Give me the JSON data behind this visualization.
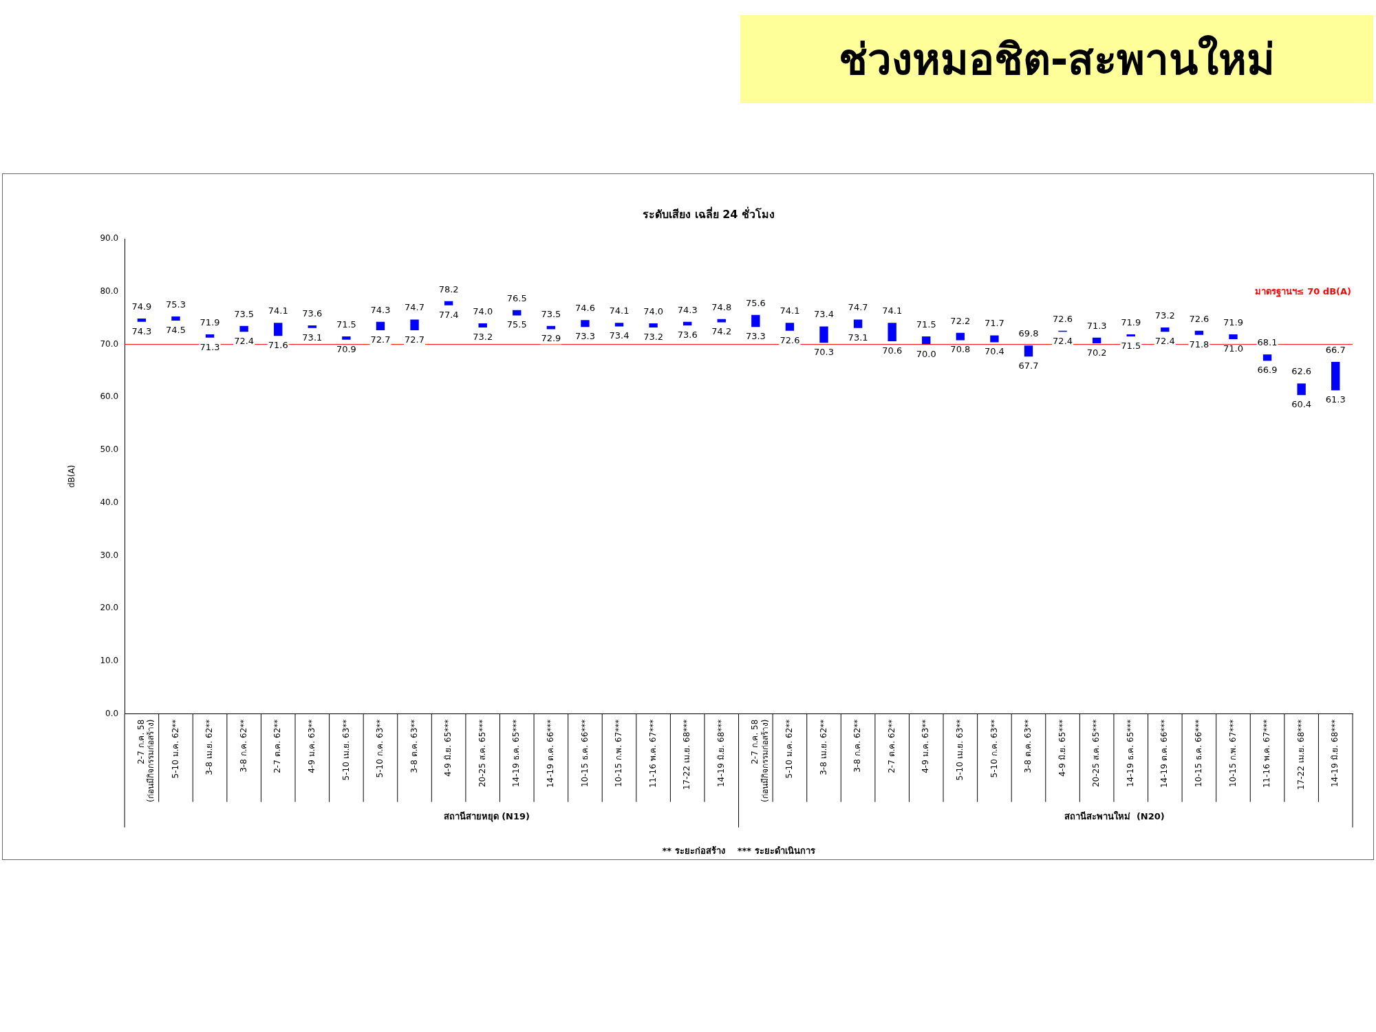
{
  "chart_data": {
    "type": "bar",
    "title": "ช่วงหมอชิต-สะพานใหม่",
    "subtitle": "ระดับเสียง เฉลี่ย 24 ชั่วโมง",
    "ylabel": "dB(A)",
    "categories": [
      "2-7 ก.ค. 58\n(ก่อนมีกิจกรรมก่อสร้าง)",
      "5-10 ม.ค. 62**",
      "3-8 เม.ย. 62**",
      "3-8 ก.ค. 62**",
      "2-7 ต.ค. 62**",
      "4-9 ม.ค. 63**",
      "5-10 เม.ย. 63**",
      "5-10 ก.ค. 63**",
      "3-8 ต.ค. 63**",
      "4-9 มิ.ย. 65***",
      "20-25 ส.ค. 65***",
      "14-19 ธ.ค. 65***",
      "14-19 ต.ค. 66***",
      "10-15 ธ.ค. 66***",
      "10-15 ก.พ. 67***",
      "11-16 พ.ค. 67***",
      "17-22 เม.ย. 68***",
      "14-19 มิ.ย. 68***",
      "2-7 ก.ค. 58\n(ก่อนมีกิจกรรมก่อสร้าง)",
      "5-10 ม.ค. 62**",
      "3-8 เม.ย. 62**",
      "3-8 ก.ค. 62**",
      "2-7 ต.ค. 62**",
      "4-9 ม.ค. 63**",
      "5-10 เม.ย. 63**",
      "5-10 ก.ค. 63**",
      "3-8 ต.ค. 63**",
      "4-9 มิ.ย. 65***",
      "20-25 ส.ค. 65***",
      "14-19 ธ.ค. 65***",
      "14-19 ต.ค. 66***",
      "10-15 ธ.ค. 66***",
      "10-15 ก.พ. 67***",
      "11-16 พ.ค. 67***",
      "17-22 เม.ย. 68***",
      "14-19 มิ.ย. 68***"
    ],
    "base": [
      74.3,
      74.5,
      71.3,
      72.4,
      71.6,
      73.1,
      70.9,
      72.7,
      72.7,
      77.4,
      73.2,
      75.5,
      72.9,
      73.3,
      73.4,
      73.2,
      73.6,
      74.2,
      73.3,
      72.6,
      70.3,
      73.1,
      70.6,
      70.0,
      70.8,
      70.4,
      67.7,
      72.4,
      70.2,
      71.5,
      72.4,
      71.8,
      71.0,
      66.9,
      60.4,
      61.3
    ],
    "values": [
      0.6,
      0.8,
      0.6,
      1.1,
      2.5,
      0.5,
      0.6,
      1.6,
      2.0,
      0.8,
      0.8,
      1.0,
      0.6,
      1.3,
      0.7,
      0.8,
      0.7,
      0.6,
      2.3,
      1.5,
      3.1,
      1.6,
      3.5,
      1.5,
      1.4,
      1.3,
      2.1,
      0.2,
      1.1,
      0.4,
      0.8,
      0.8,
      0.9,
      1.2,
      2.2,
      5.4
    ],
    "value_labels": [
      "74.9",
      "75.3",
      "71.9",
      "73.5",
      "74.1",
      "73.6",
      "71.5",
      "74.3",
      "74.7",
      "78.2",
      "74.0",
      "76.5",
      "73.5",
      "74.6",
      "74.1",
      "74.0",
      "74.3",
      "74.8",
      "75.6",
      "74.1",
      "73.4",
      "74.7",
      "74.1",
      "71.5",
      "72.2",
      "71.7",
      "69.8",
      "72.6",
      "71.3",
      "71.9",
      "73.2",
      "72.6",
      "71.9",
      "68.1",
      "62.6",
      "66.7"
    ],
    "color": "#0000ff",
    "ylim": [
      0,
      90
    ],
    "yticks": [
      {
        "value": 0,
        "label": "0.0"
      },
      {
        "value": 10,
        "label": "10.0"
      },
      {
        "value": 20,
        "label": "20.0"
      },
      {
        "value": 30,
        "label": "30.0"
      },
      {
        "value": 40,
        "label": "40.0"
      },
      {
        "value": 50,
        "label": "50.0"
      },
      {
        "value": 60,
        "label": "60.0"
      },
      {
        "value": 70,
        "label": "70.0"
      },
      {
        "value": 80,
        "label": "80.0"
      },
      {
        "value": 90,
        "label": "90.0"
      }
    ],
    "ref_lines": [
      {
        "axis": "y",
        "value": 70,
        "label": "มาตรฐานฯ≤ 70 dB(A)",
        "color": "#ff0000"
      }
    ],
    "annotations": [
      "สถานีสายหยุด (N19)",
      "สถานีสะพานใหม่  (N20)",
      "** ระยะก่อสร้าง    *** ระยะดำเนินการ",
      "74.3",
      "74.5",
      "71.3",
      "72.4",
      "71.6",
      "73.1",
      "70.9",
      "72.7",
      "72.7",
      "77.4",
      "73.2",
      "75.5",
      "72.9",
      "73.3",
      "73.4",
      "73.2",
      "73.6",
      "74.2",
      "73.3",
      "72.6",
      "70.3",
      "73.1",
      "70.6",
      "70.0",
      "70.8",
      "70.4",
      "67.7",
      "72.4",
      "70.2",
      "71.5",
      "72.4",
      "71.8",
      "71.0",
      "66.9",
      "60.4",
      "61.3"
    ],
    "grid": false,
    "legend": false
  }
}
